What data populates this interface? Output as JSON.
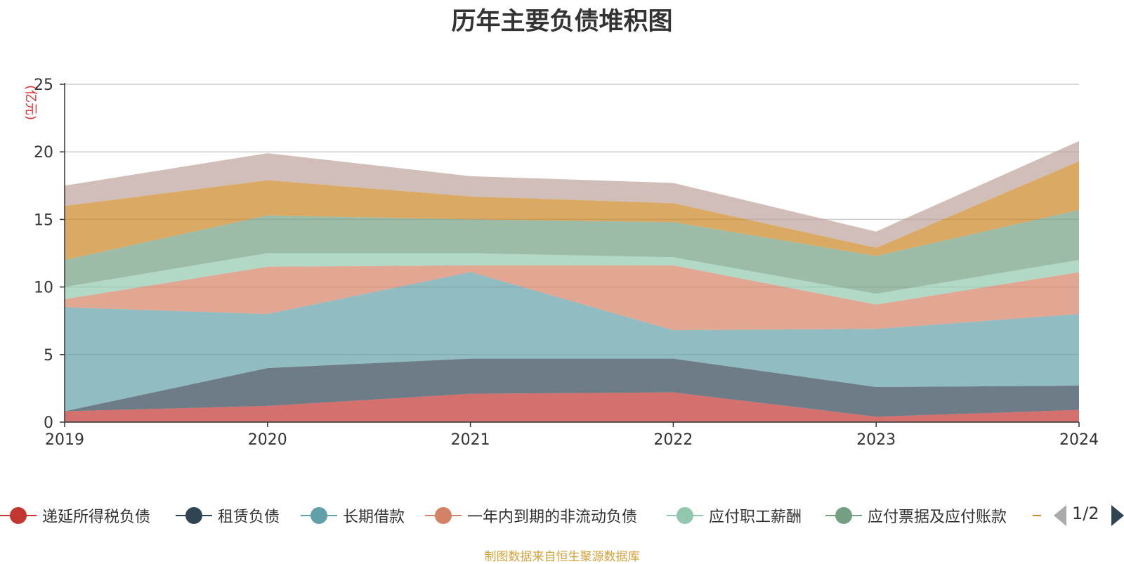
{
  "chart_data": {
    "type": "area",
    "stacked": true,
    "title": "历年主要负债堆积图",
    "ylabel": "(亿元)",
    "xlabel": "",
    "ylim": [
      0,
      25
    ],
    "yticks": [
      "0",
      "5",
      "10",
      "15",
      "20",
      "25"
    ],
    "categories": [
      "2019",
      "2020",
      "2021",
      "2022",
      "2023",
      "2024"
    ],
    "grid": true,
    "series": [
      {
        "name": "递延所得税负债",
        "color": "#c23531",
        "values": [
          0.8,
          1.2,
          2.1,
          2.2,
          0.4,
          0.9
        ]
      },
      {
        "name": "租赁负债",
        "color": "#2f4554",
        "values": [
          0.0,
          2.8,
          2.6,
          2.5,
          2.2,
          1.8
        ]
      },
      {
        "name": "长期借款",
        "color": "#61a0a8",
        "values": [
          7.7,
          4.0,
          6.4,
          2.1,
          4.3,
          5.3
        ]
      },
      {
        "name": "一年内到期的非流动负债",
        "color": "#d48265",
        "values": [
          0.6,
          3.5,
          0.5,
          4.8,
          1.8,
          3.1
        ]
      },
      {
        "name": "应付职工薪酬",
        "color": "#91c7ae",
        "values": [
          0.9,
          1.0,
          0.9,
          0.6,
          0.8,
          0.9
        ]
      },
      {
        "name": "应付票据及应付账款",
        "color": "#749f83",
        "values": [
          2.0,
          2.8,
          2.5,
          2.6,
          2.8,
          3.7
        ]
      },
      {
        "name": "",
        "color": "#ca8622",
        "values": [
          4.0,
          2.6,
          1.7,
          1.4,
          0.6,
          3.6
        ]
      },
      {
        "name": "",
        "color": "#bda29a",
        "values": [
          1.5,
          2.0,
          1.5,
          1.5,
          1.2,
          1.5
        ]
      }
    ]
  },
  "legend": {
    "items": [
      {
        "label": "递延所得税负债",
        "color": "#c23531"
      },
      {
        "label": "租赁负债",
        "color": "#2f4554"
      },
      {
        "label": "长期借款",
        "color": "#61a0a8"
      },
      {
        "label": "一年内到期的非流动负债",
        "color": "#d48265"
      },
      {
        "label": "应付职工薪酬",
        "color": "#91c7ae"
      },
      {
        "label": "应付票据及应付账款",
        "color": "#749f83"
      }
    ],
    "page": "1/2"
  },
  "source_note": "制图数据来自恒生聚源数据库"
}
